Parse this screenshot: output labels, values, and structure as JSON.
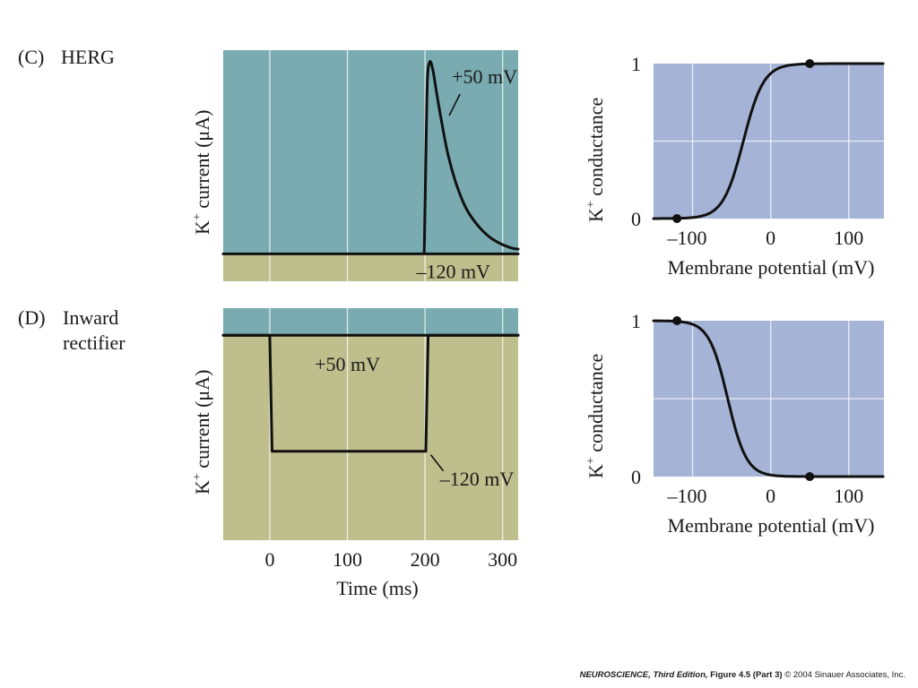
{
  "colors": {
    "current_positive": "#7aabb0",
    "current_negative": "#bfbf8e",
    "conductance_bg": "#a5b4d6",
    "trace": "#111111",
    "grid": "#ffffff"
  },
  "panels": [
    {
      "id": "C",
      "letter": "(C)",
      "title_lines": [
        "HERG"
      ]
    },
    {
      "id": "D",
      "letter": "(D)",
      "title_lines": [
        "Inward",
        "rectifier"
      ]
    }
  ],
  "chart_data": [
    {
      "type": "line",
      "panel": "C",
      "title": "HERG K+ current",
      "ylabel": "K+ current (μA)",
      "xlabel": "",
      "xlim": [
        -60,
        320
      ],
      "xgrid": [
        0,
        100,
        200,
        300
      ],
      "ylim": [
        -0.35,
        2.6
      ],
      "zero_line": 0,
      "series": [
        {
          "name": "+50 mV",
          "x": [
            -60,
            199,
            201,
            203,
            206,
            210,
            215,
            222,
            230,
            240,
            252,
            265,
            280,
            295,
            310,
            320
          ],
          "y": [
            0,
            0,
            1.2,
            2.2,
            2.45,
            2.35,
            2.05,
            1.65,
            1.25,
            0.9,
            0.6,
            0.4,
            0.24,
            0.14,
            0.08,
            0.06
          ]
        },
        {
          "name": "-120 mV",
          "x": [
            -60,
            320
          ],
          "y": [
            0,
            0
          ]
        }
      ],
      "annotations": [
        {
          "text": "+50 mV",
          "x": 252,
          "y": 2.2
        },
        {
          "text": "–120 mV",
          "x": 272,
          "y": -0.22
        }
      ]
    },
    {
      "type": "line",
      "panel": "C",
      "title": "HERG conductance",
      "ylabel": "K+ conductance",
      "xlabel": "Membrane potential (mV)",
      "xlim": [
        -150,
        145
      ],
      "xticks": [
        -100,
        0,
        100
      ],
      "xtick_labels": [
        "–100",
        "0",
        "100"
      ],
      "ylim": [
        0,
        1
      ],
      "yticks": [
        0,
        1
      ],
      "ytick_labels": [
        "0",
        "1"
      ],
      "curve": {
        "shape": "rising-sigmoid",
        "v_half": -35,
        "slope_mv": 13
      },
      "points": [
        {
          "x": -120,
          "y": 0
        },
        {
          "x": 50,
          "y": 1
        }
      ]
    },
    {
      "type": "line",
      "panel": "D",
      "title": "Inward rectifier K+ current",
      "ylabel": "K+ current (μA)",
      "xlabel": "Time (ms)",
      "xlim": [
        -60,
        320
      ],
      "xticks": [
        0,
        100,
        200,
        300
      ],
      "xtick_labels": [
        "0",
        "100",
        "200",
        "300"
      ],
      "ylim": [
        -2.65,
        0.35
      ],
      "zero_line": 0,
      "series": [
        {
          "name": "+50 mV",
          "x": [
            -60,
            320
          ],
          "y": [
            0,
            0
          ]
        },
        {
          "name": "-120 mV",
          "x": [
            -60,
            0,
            3,
            201,
            204,
            320
          ],
          "y": [
            0,
            0,
            -1.5,
            -1.5,
            0,
            0
          ]
        }
      ],
      "annotations": [
        {
          "text": "+50 mV",
          "x": 100,
          "y": -0.3
        },
        {
          "text": "–120 mV",
          "x": 270,
          "y": -1.85
        }
      ]
    },
    {
      "type": "line",
      "panel": "D",
      "title": "Inward rectifier conductance",
      "ylabel": "K+ conductance",
      "xlabel": "Membrane potential (mV)",
      "xlim": [
        -150,
        145
      ],
      "xticks": [
        -100,
        0,
        100
      ],
      "xtick_labels": [
        "–100",
        "0",
        "100"
      ],
      "ylim": [
        0,
        1
      ],
      "yticks": [
        0,
        1
      ],
      "ytick_labels": [
        "0",
        "1"
      ],
      "curve": {
        "shape": "falling-sigmoid",
        "v_half": -55,
        "slope_mv": 12
      },
      "points": [
        {
          "x": -120,
          "y": 1
        },
        {
          "x": 50,
          "y": 0
        }
      ]
    }
  ],
  "footer": {
    "book": "NEUROSCIENCE,",
    "edition": "Third Edition,",
    "figure": "Figure 4.5 (Part 3)",
    "copyright": "© 2004 Sinauer Associates, Inc."
  }
}
